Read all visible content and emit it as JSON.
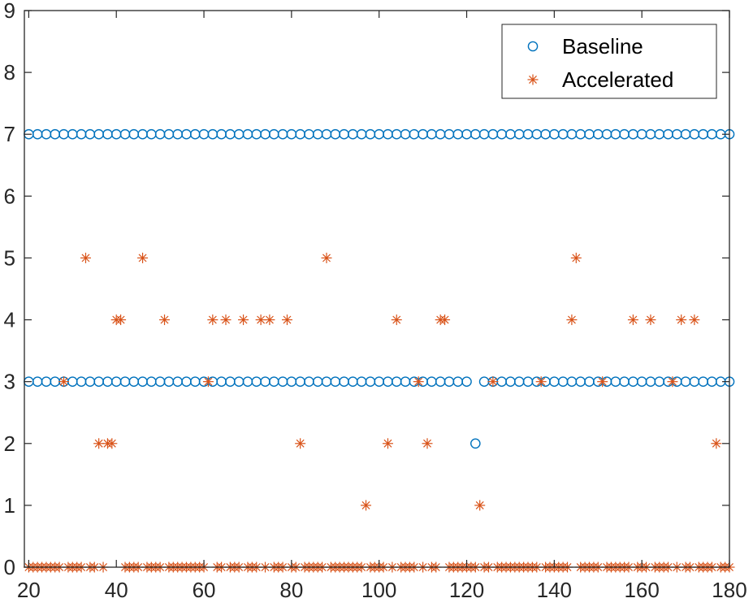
{
  "chart_data": {
    "type": "scatter",
    "title": "",
    "xlabel": "",
    "ylabel": "",
    "xlim": [
      19,
      180
    ],
    "ylim": [
      0,
      9
    ],
    "xticks": [
      20,
      40,
      60,
      80,
      100,
      120,
      140,
      160,
      180
    ],
    "yticks": [
      0,
      1,
      2,
      3,
      4,
      5,
      6,
      7,
      8,
      9
    ],
    "grid": false,
    "legend_position": "top-right",
    "series": [
      {
        "name": "Baseline",
        "marker": "circle",
        "color": "#0072BD",
        "x_range": [
          20,
          180,
          2
        ],
        "levels": [
          7,
          3
        ],
        "exceptions": [
          {
            "x": 122,
            "y": 2
          }
        ]
      },
      {
        "name": "Accelerated",
        "marker": "asterisk",
        "color": "#D95319",
        "x_range": [
          20,
          180,
          1
        ],
        "default_y": 0,
        "points": [
          {
            "y": 5,
            "x": [
              33,
              46,
              88,
              145
            ]
          },
          {
            "y": 4,
            "x": [
              40,
              41,
              51,
              62,
              65,
              69,
              73,
              75,
              79,
              104,
              114,
              115,
              144,
              158,
              162,
              169,
              172
            ]
          },
          {
            "y": 3,
            "x": [
              28,
              61,
              109,
              126,
              137,
              151,
              167
            ]
          },
          {
            "y": 2,
            "x": [
              36,
              38,
              39,
              82,
              102,
              111,
              177
            ]
          },
          {
            "y": 1,
            "x": [
              97,
              123
            ]
          }
        ]
      }
    ]
  }
}
